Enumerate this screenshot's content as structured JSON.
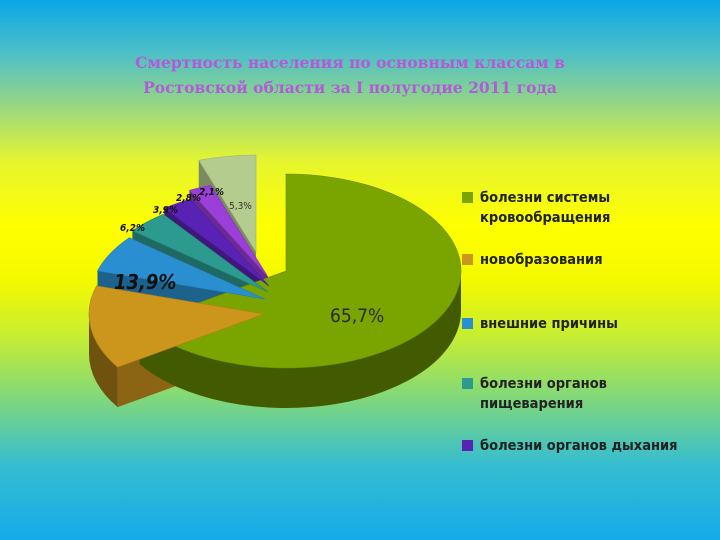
{
  "chart_data": {
    "type": "pie",
    "title": "Смертность населения по основным классам в Ростовской области за I полугодие 2011 года",
    "title_lines": [
      "Смертность населения по основным классам в",
      "Ростовской области за I полугодие 2011 года"
    ],
    "slices": [
      {
        "label": "болезни системы кровообращения",
        "value": 65.7,
        "display": "65,7%",
        "color": "#7aa500"
      },
      {
        "label": "новобразования",
        "value": 13.9,
        "display": "13,9%",
        "color": "#cc951c"
      },
      {
        "label": "внешние причины",
        "value": 6.2,
        "display": "6,2%",
        "color": "#2a8fd0"
      },
      {
        "label": "болезни органов пищеварения",
        "value": 3.9,
        "display": "3,9%",
        "color": "#2c9a8e"
      },
      {
        "label": "болезни органов дыхания",
        "value": 2.8,
        "display": "2,8%",
        "color": "#5a22b4"
      },
      {
        "label": "",
        "value": 2.1,
        "display": "2,1%",
        "color": "#9a3fd8"
      },
      {
        "label": "",
        "value": 5.3,
        "display": "5,3%",
        "color": "#b4cd8e"
      }
    ],
    "legend_position": "right"
  }
}
